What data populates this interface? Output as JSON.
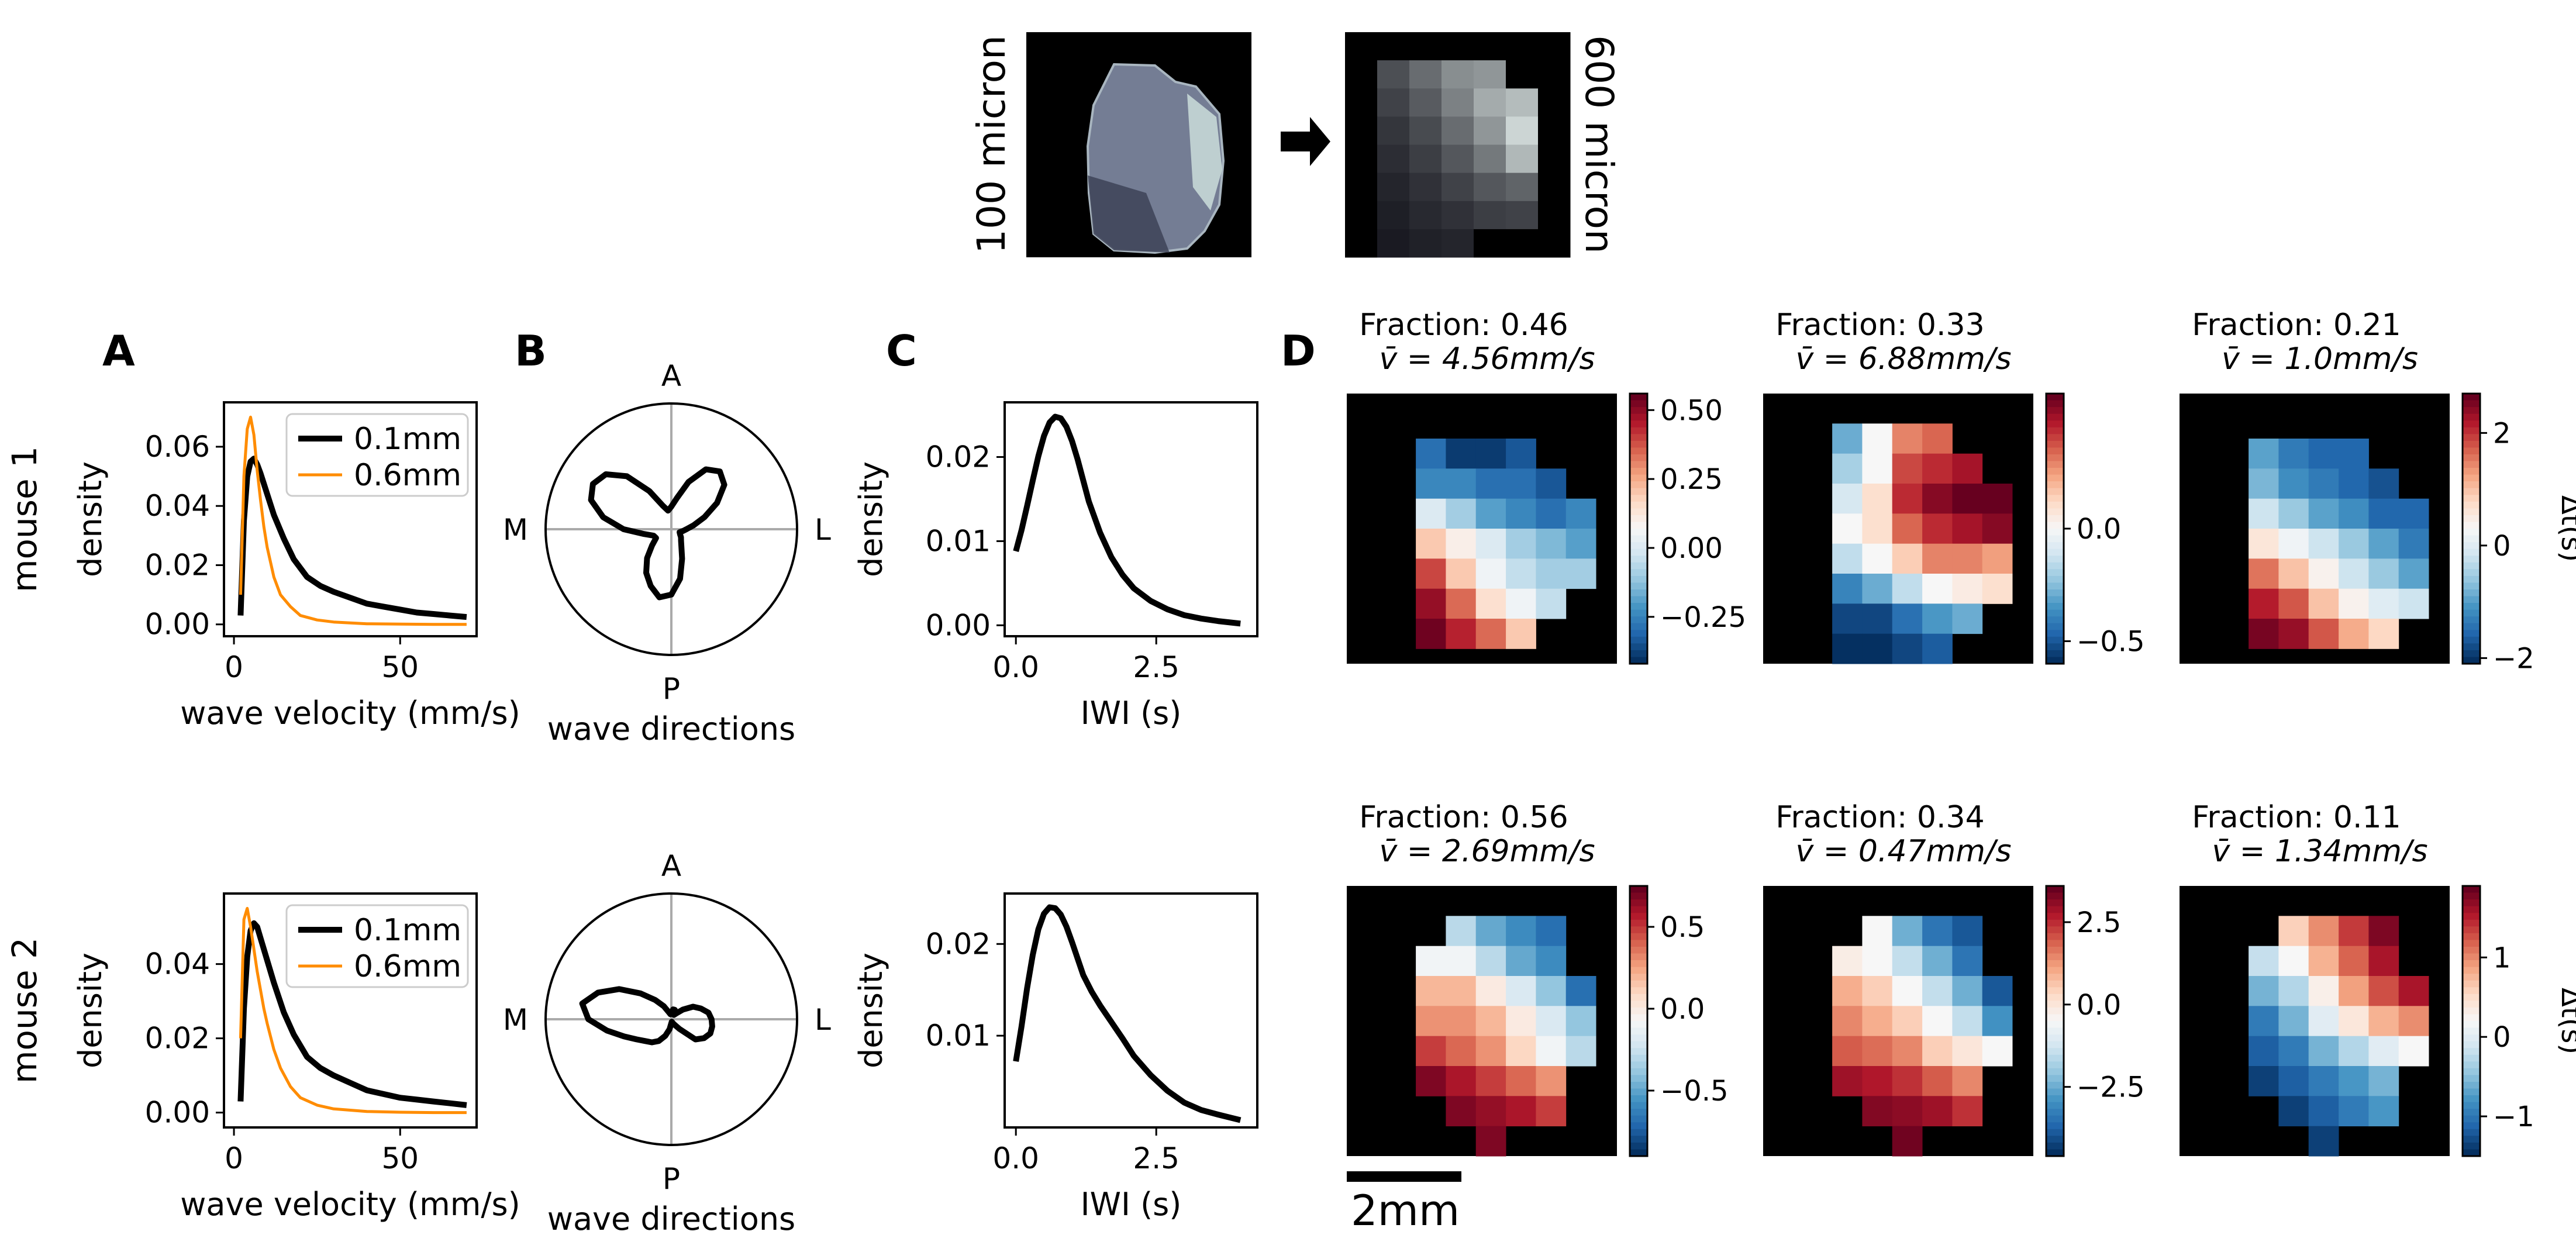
{
  "chart_data": [
    {
      "id": "top-schematic",
      "type": "image-schematic",
      "left_label": "100 micron",
      "right_label": "600 micron",
      "downsample_grid": {
        "rows": 8,
        "cols": 7,
        "cells": [
          [
            0,
            0,
            0,
            0,
            0,
            0,
            0
          ],
          [
            0,
            0.28,
            0.42,
            0.58,
            0.62,
            0,
            0
          ],
          [
            0,
            0.22,
            0.34,
            0.52,
            0.72,
            0.8,
            0
          ],
          [
            0,
            0.16,
            0.26,
            0.42,
            0.62,
            0.92,
            0
          ],
          [
            0,
            0.12,
            0.2,
            0.32,
            0.48,
            0.78,
            0
          ],
          [
            0,
            0.08,
            0.14,
            0.22,
            0.32,
            0.38,
            0
          ],
          [
            0,
            0.05,
            0.1,
            0.14,
            0.2,
            0.22,
            0
          ],
          [
            0,
            0.03,
            0.06,
            0.08,
            0,
            0,
            0
          ]
        ]
      }
    },
    {
      "id": "mouse1-A",
      "panel": "A",
      "row_label": "mouse 1",
      "type": "line",
      "xlabel": "wave velocity (mm/s)",
      "ylabel": "density",
      "xlim": [
        -3,
        73
      ],
      "ylim": [
        -0.004,
        0.075
      ],
      "xticks": [
        0,
        50
      ],
      "xtick_labels": [
        "0",
        "50"
      ],
      "yticks": [
        0,
        0.02,
        0.04,
        0.06
      ],
      "ytick_labels": [
        "0.00",
        "0.02",
        "0.04",
        "0.06"
      ],
      "legend_position": "top-right",
      "series": [
        {
          "name": "0.1mm",
          "color": "#000000",
          "x": [
            2,
            3,
            4,
            5,
            6,
            7,
            8,
            10,
            12,
            15,
            18,
            22,
            26,
            30,
            35,
            40,
            45,
            50,
            55,
            60,
            65,
            70
          ],
          "y": [
            0.003,
            0.035,
            0.05,
            0.055,
            0.056,
            0.054,
            0.051,
            0.044,
            0.037,
            0.029,
            0.022,
            0.016,
            0.013,
            0.011,
            0.009,
            0.007,
            0.006,
            0.005,
            0.004,
            0.0035,
            0.003,
            0.0025
          ]
        },
        {
          "name": "0.6mm",
          "color": "#ff8c00",
          "x": [
            2,
            3,
            4,
            5,
            6,
            7,
            8,
            9,
            10,
            12,
            14,
            17,
            20,
            25,
            30,
            40,
            50,
            60,
            70
          ],
          "y": [
            0.01,
            0.05,
            0.066,
            0.07,
            0.064,
            0.052,
            0.042,
            0.033,
            0.026,
            0.016,
            0.01,
            0.006,
            0.003,
            0.0015,
            0.0008,
            0.0002,
            0.0001,
            0,
            0
          ]
        }
      ]
    },
    {
      "id": "mouse1-B",
      "panel": "B",
      "type": "polar",
      "xlabel": "wave directions",
      "direction_labels": {
        "top": "A",
        "bottom": "P",
        "left": "M",
        "right": "L"
      },
      "r": [
        0.12,
        0.18,
        0.28,
        0.42,
        0.55,
        0.6,
        0.55,
        0.4,
        0.25,
        0.18,
        0.15,
        0.2,
        0.35,
        0.55,
        0.68,
        0.72,
        0.68,
        0.55,
        0.38,
        0.22,
        0.15,
        0.14,
        0.2,
        0.3,
        0.4,
        0.48,
        0.55,
        0.52,
        0.4,
        0.25,
        0.16,
        0.12,
        0.1,
        0.08,
        0.07,
        0.09
      ]
    },
    {
      "id": "mouse1-C",
      "panel": "C",
      "type": "line",
      "xlabel": "IWI (s)",
      "ylabel": "density",
      "xlim": [
        -0.2,
        4.3
      ],
      "ylim": [
        -0.0013,
        0.0265
      ],
      "xticks": [
        0,
        2.5
      ],
      "xtick_labels": [
        "0.0",
        "2.5"
      ],
      "yticks": [
        0,
        0.01,
        0.02
      ],
      "ytick_labels": [
        "0.00",
        "0.01",
        "0.02"
      ],
      "series": [
        {
          "name": "IWI",
          "color": "#000000",
          "x": [
            0,
            0.1,
            0.2,
            0.3,
            0.4,
            0.5,
            0.6,
            0.7,
            0.8,
            0.9,
            1.0,
            1.1,
            1.2,
            1.3,
            1.5,
            1.7,
            1.9,
            2.1,
            2.4,
            2.7,
            3.0,
            3.3,
            3.6,
            4.0
          ],
          "y": [
            0.0088,
            0.0113,
            0.0142,
            0.0172,
            0.0201,
            0.0225,
            0.0241,
            0.0248,
            0.0246,
            0.0236,
            0.0219,
            0.0197,
            0.0172,
            0.0147,
            0.011,
            0.0081,
            0.006,
            0.0044,
            0.0029,
            0.0019,
            0.0012,
            0.0008,
            0.0005,
            0.0002
          ]
        }
      ]
    },
    {
      "id": "mouse1-D1",
      "panel": "D",
      "type": "heatmap",
      "title_line1": "Fraction: 0.46",
      "title_line2": "v̄ = 4.56mm/s",
      "colorbar_ticks": [
        0.5,
        0.25,
        0,
        -0.25
      ],
      "colorbar_tick_labels": [
        "0.50",
        "0.25",
        "0.00",
        "−0.25"
      ],
      "vmin": -0.42,
      "vmax": 0.56,
      "colorbar_label": "",
      "cells": [
        [
          null,
          null,
          null,
          null,
          null,
          null,
          null
        ],
        [
          null,
          -0.3,
          -0.4,
          -0.4,
          -0.35,
          null,
          null
        ],
        [
          null,
          -0.25,
          -0.25,
          -0.3,
          -0.3,
          -0.35,
          null
        ],
        [
          null,
          0.0,
          -0.1,
          -0.2,
          -0.25,
          -0.3,
          -0.25
        ],
        [
          null,
          0.2,
          0.1,
          0.0,
          -0.1,
          -0.15,
          -0.2
        ],
        [
          null,
          0.4,
          0.2,
          0.05,
          -0.05,
          -0.1,
          -0.1
        ],
        [
          null,
          0.5,
          0.35,
          0.15,
          0.05,
          -0.05,
          null
        ],
        [
          null,
          0.55,
          0.45,
          0.35,
          0.2,
          null,
          null
        ]
      ]
    },
    {
      "id": "mouse1-D2",
      "panel": "D",
      "type": "heatmap",
      "title_line1": "Fraction: 0.33",
      "title_line2": "v̄ = 6.88mm/s",
      "colorbar_ticks": [
        0,
        -0.5
      ],
      "colorbar_tick_labels": [
        "0.0",
        "−0.5"
      ],
      "vmin": -0.6,
      "vmax": 0.6,
      "colorbar_label": "",
      "cells": [
        [
          null,
          null,
          null,
          null,
          null,
          null,
          null
        ],
        [
          null,
          -0.3,
          0.0,
          0.3,
          0.35,
          null,
          null
        ],
        [
          null,
          -0.2,
          0.0,
          0.4,
          0.45,
          0.5,
          null
        ],
        [
          null,
          -0.1,
          0.1,
          0.45,
          0.55,
          0.6,
          0.6
        ],
        [
          null,
          0.0,
          0.1,
          0.35,
          0.45,
          0.5,
          0.55
        ],
        [
          null,
          -0.15,
          0.0,
          0.15,
          0.3,
          0.3,
          0.25
        ],
        [
          null,
          -0.4,
          -0.3,
          -0.15,
          0.0,
          0.05,
          0.1
        ],
        [
          null,
          -0.55,
          -0.55,
          -0.45,
          -0.35,
          -0.3,
          null
        ],
        [
          null,
          -0.6,
          -0.6,
          -0.55,
          -0.5,
          null,
          null
        ]
      ]
    },
    {
      "id": "mouse1-D3",
      "panel": "D",
      "type": "heatmap",
      "title_line1": "Fraction: 0.21",
      "title_line2": "v̄ = 1.0mm/s",
      "colorbar_ticks": [
        2,
        0,
        -2
      ],
      "colorbar_tick_labels": [
        "2",
        "0",
        "−2"
      ],
      "vmin": -2.1,
      "vmax": 2.7,
      "colorbar_label": "Δt(s)",
      "cells": [
        [
          null,
          null,
          null,
          null,
          null,
          null,
          null
        ],
        [
          null,
          -1.0,
          -1.4,
          -1.6,
          -1.6,
          null,
          null
        ],
        [
          null,
          -0.8,
          -1.2,
          -1.4,
          -1.6,
          -1.8,
          null
        ],
        [
          null,
          -0.2,
          -0.6,
          -1.0,
          -1.2,
          -1.6,
          -1.6
        ],
        [
          null,
          0.6,
          0.2,
          -0.2,
          -0.6,
          -1.0,
          -1.4
        ],
        [
          null,
          1.6,
          1.0,
          0.4,
          -0.2,
          -0.6,
          -1.0
        ],
        [
          null,
          2.2,
          1.8,
          1.0,
          0.4,
          0.0,
          -0.2
        ],
        [
          null,
          2.6,
          2.4,
          1.8,
          1.2,
          0.8,
          null
        ]
      ]
    },
    {
      "id": "mouse2-A",
      "panel": "A",
      "row_label": "mouse 2",
      "type": "line",
      "xlabel": "wave velocity (mm/s)",
      "ylabel": "density",
      "xlim": [
        -3,
        73
      ],
      "ylim": [
        -0.004,
        0.059
      ],
      "xticks": [
        0,
        50
      ],
      "xtick_labels": [
        "0",
        "50"
      ],
      "yticks": [
        0,
        0.02,
        0.04
      ],
      "ytick_labels": [
        "0.00",
        "0.02",
        "0.04"
      ],
      "legend_position": "top-right",
      "series": [
        {
          "name": "0.1mm",
          "color": "#000000",
          "x": [
            2,
            3,
            4,
            5,
            6,
            7,
            8,
            10,
            12,
            15,
            18,
            22,
            26,
            30,
            35,
            40,
            45,
            50,
            55,
            60,
            65,
            70
          ],
          "y": [
            0.003,
            0.028,
            0.042,
            0.049,
            0.051,
            0.05,
            0.047,
            0.041,
            0.035,
            0.027,
            0.021,
            0.015,
            0.012,
            0.01,
            0.008,
            0.006,
            0.005,
            0.004,
            0.0035,
            0.003,
            0.0025,
            0.002
          ]
        },
        {
          "name": "0.6mm",
          "color": "#ff8c00",
          "x": [
            2,
            3,
            4,
            5,
            6,
            7,
            8,
            9,
            10,
            12,
            14,
            17,
            20,
            25,
            30,
            40,
            50,
            60,
            70
          ],
          "y": [
            0.02,
            0.052,
            0.055,
            0.05,
            0.044,
            0.038,
            0.033,
            0.028,
            0.024,
            0.017,
            0.012,
            0.007,
            0.004,
            0.002,
            0.001,
            0.0003,
            0.0001,
            0,
            0
          ]
        }
      ]
    },
    {
      "id": "mouse2-B",
      "panel": "B",
      "type": "polar",
      "xlabel": "wave directions",
      "direction_labels": {
        "top": "A",
        "bottom": "P",
        "left": "M",
        "right": "L"
      },
      "r": [
        0.32,
        0.3,
        0.25,
        0.2,
        0.12,
        0.06,
        0.04,
        0.08,
        0.08,
        0.05,
        0.04,
        0.06,
        0.12,
        0.2,
        0.32,
        0.48,
        0.62,
        0.72,
        0.66,
        0.52,
        0.4,
        0.32,
        0.27,
        0.24,
        0.2,
        0.14,
        0.08,
        0.03,
        0.02,
        0.03,
        0.05,
        0.1,
        0.25,
        0.3,
        0.33,
        0.33
      ]
    },
    {
      "id": "mouse2-C",
      "panel": "C",
      "type": "line",
      "xlabel": "IWI (s)",
      "ylabel": "density",
      "xlim": [
        -0.2,
        4.3
      ],
      "ylim": [
        0.0,
        0.0255
      ],
      "xticks": [
        0,
        2.5
      ],
      "xtick_labels": [
        "0.0",
        "2.5"
      ],
      "yticks": [
        0.01,
        0.02
      ],
      "ytick_labels": [
        "0.01",
        "0.02"
      ],
      "series": [
        {
          "name": "IWI",
          "color": "#000000",
          "x": [
            0,
            0.1,
            0.2,
            0.3,
            0.4,
            0.5,
            0.6,
            0.7,
            0.8,
            0.9,
            1.0,
            1.1,
            1.2,
            1.35,
            1.5,
            1.7,
            1.9,
            2.1,
            2.4,
            2.7,
            3.0,
            3.3,
            3.6,
            4.0
          ],
          "y": [
            0.0072,
            0.011,
            0.0152,
            0.0188,
            0.0216,
            0.0233,
            0.024,
            0.0239,
            0.0232,
            0.0219,
            0.0202,
            0.0184,
            0.0166,
            0.0148,
            0.0133,
            0.0115,
            0.0097,
            0.0078,
            0.0057,
            0.004,
            0.0027,
            0.0019,
            0.0014,
            0.0008
          ]
        }
      ]
    },
    {
      "id": "mouse2-D1",
      "panel": "D",
      "type": "heatmap",
      "title_line1": "Fraction: 0.56",
      "title_line2": "v̄ = 2.69mm/s",
      "colorbar_ticks": [
        0.5,
        0,
        -0.5
      ],
      "colorbar_tick_labels": [
        "0.5",
        "0.0",
        "−0.5"
      ],
      "vmin": -0.9,
      "vmax": 0.75,
      "colorbar_label": "",
      "cells": [
        [
          null,
          null,
          null,
          null,
          null,
          null,
          null
        ],
        [
          null,
          null,
          -0.3,
          -0.5,
          -0.6,
          -0.7,
          null
        ],
        [
          null,
          -0.1,
          -0.1,
          -0.3,
          -0.5,
          -0.6,
          null
        ],
        [
          null,
          0.2,
          0.2,
          0.0,
          -0.2,
          -0.4,
          -0.7
        ],
        [
          null,
          0.3,
          0.3,
          0.2,
          0.0,
          -0.2,
          -0.4
        ],
        [
          null,
          0.5,
          0.4,
          0.3,
          0.1,
          -0.1,
          -0.3
        ],
        [
          null,
          0.7,
          0.6,
          0.5,
          0.4,
          0.3,
          null
        ],
        [
          null,
          null,
          0.7,
          0.65,
          0.6,
          0.5,
          null
        ],
        [
          null,
          null,
          null,
          0.7,
          null,
          null,
          null
        ]
      ]
    },
    {
      "id": "mouse2-D2",
      "panel": "D",
      "type": "heatmap",
      "title_line1": "Fraction: 0.34",
      "title_line2": "v̄ = 0.47mm/s",
      "colorbar_ticks": [
        2.5,
        0,
        -2.5
      ],
      "colorbar_tick_labels": [
        "2.5",
        "0.0",
        "−2.5"
      ],
      "vmin": -4.6,
      "vmax": 3.6,
      "colorbar_label": "",
      "cells": [
        [
          null,
          null,
          null,
          null,
          null,
          null,
          null
        ],
        [
          null,
          null,
          -0.5,
          -2.5,
          -3.5,
          -4.0,
          null
        ],
        [
          null,
          -0.2,
          -0.5,
          -1.5,
          -2.5,
          -3.5,
          null
        ],
        [
          null,
          1.0,
          0.5,
          -0.5,
          -1.5,
          -2.5,
          -4.0
        ],
        [
          null,
          1.5,
          1.0,
          0.5,
          -0.5,
          -1.5,
          -3.0
        ],
        [
          null,
          2.0,
          1.8,
          1.5,
          0.5,
          0.0,
          -0.5
        ],
        [
          null,
          3.0,
          2.8,
          2.5,
          2.0,
          1.5,
          null
        ],
        [
          null,
          null,
          3.3,
          3.2,
          3.0,
          2.5,
          null
        ],
        [
          null,
          null,
          null,
          3.5,
          null,
          null,
          null
        ]
      ]
    },
    {
      "id": "mouse2-D3",
      "panel": "D",
      "type": "heatmap",
      "title_line1": "Fraction: 0.11",
      "title_line2": "v̄ = 1.34mm/s",
      "colorbar_ticks": [
        1,
        0,
        -1
      ],
      "colorbar_tick_labels": [
        "1",
        "0",
        "−1"
      ],
      "vmin": -1.5,
      "vmax": 1.9,
      "colorbar_label": "Δt(s)",
      "cells": [
        [
          null,
          null,
          null,
          null,
          null,
          null,
          null
        ],
        [
          null,
          null,
          0.6,
          1.0,
          1.4,
          1.8,
          null
        ],
        [
          null,
          -0.2,
          0.2,
          0.8,
          1.2,
          1.6,
          null
        ],
        [
          null,
          -0.6,
          -0.3,
          0.3,
          0.9,
          1.3,
          1.6
        ],
        [
          null,
          -1.0,
          -0.6,
          0.0,
          0.4,
          0.8,
          1.0
        ],
        [
          null,
          -1.2,
          -1.0,
          -0.6,
          -0.3,
          0.0,
          0.2
        ],
        [
          null,
          -1.4,
          -1.2,
          -1.0,
          -0.8,
          -0.6,
          null
        ],
        [
          null,
          null,
          -1.4,
          -1.2,
          -1.0,
          -0.8,
          null
        ],
        [
          null,
          null,
          null,
          -1.4,
          null,
          null,
          null
        ]
      ]
    }
  ],
  "panel_labels": [
    "A",
    "B",
    "C",
    "D"
  ],
  "scale_bar_label": "2mm",
  "arrow_icon": "right-arrow-icon"
}
